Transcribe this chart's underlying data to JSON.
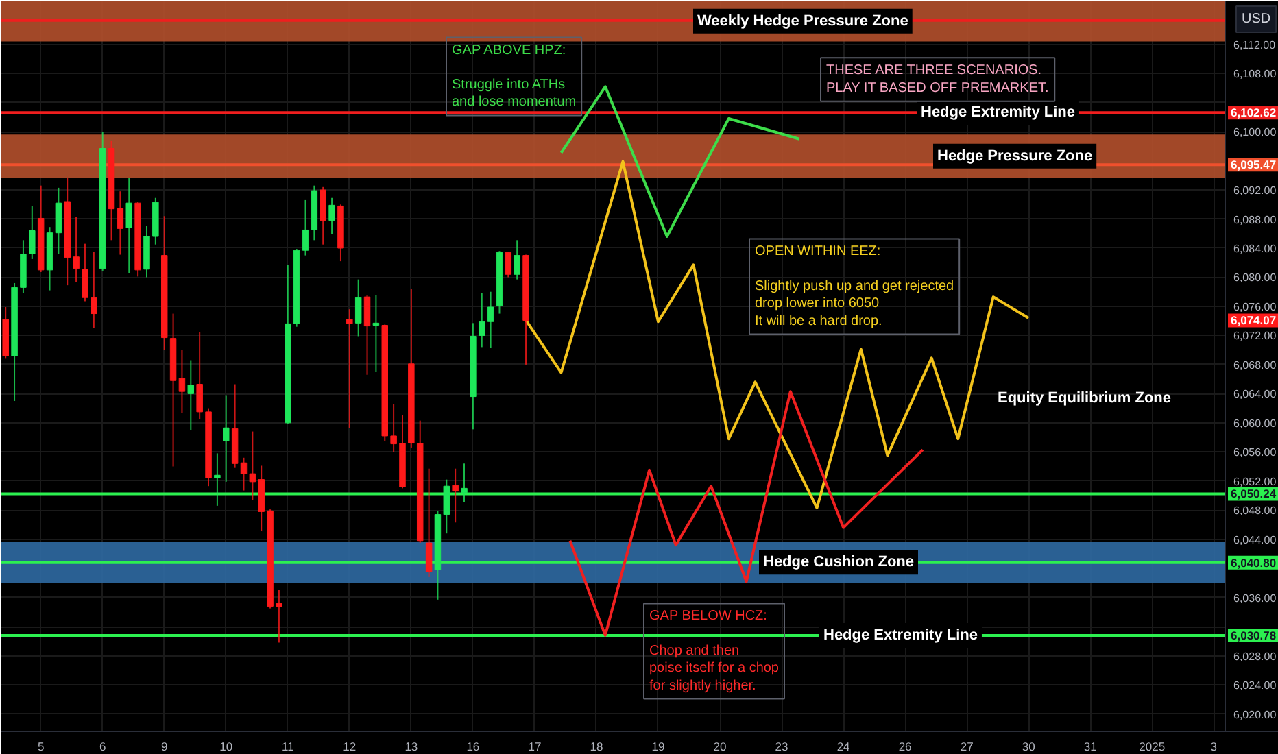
{
  "chart_data": {
    "type": "candlestick",
    "ylabel": "USD",
    "categories": [
      null,
      null,
      null,
      null,
      "5",
      null,
      null,
      null,
      null,
      null,
      null,
      "6",
      null,
      null,
      null,
      null,
      null,
      null,
      "9",
      null,
      null,
      null,
      null,
      null,
      null,
      "10",
      null,
      null,
      null,
      null,
      null,
      null,
      "11",
      null,
      null,
      null,
      null,
      null,
      null,
      "12",
      null,
      null,
      null,
      null,
      null,
      null,
      "13",
      null,
      null,
      null,
      null,
      null,
      null,
      "16",
      null,
      null,
      null,
      null,
      null,
      null,
      "17",
      null,
      null,
      null,
      null,
      null,
      null,
      "18",
      null,
      null,
      null,
      null,
      null,
      null,
      "19",
      null,
      null,
      null,
      null,
      null,
      null,
      "20",
      null,
      null,
      null,
      null,
      null,
      null,
      "23",
      null,
      null,
      null,
      null,
      null,
      null,
      "24",
      null,
      null,
      null,
      null,
      null,
      null,
      "26",
      null,
      null,
      null,
      null,
      null,
      null,
      "27",
      null,
      null,
      null,
      null,
      null,
      null,
      "30",
      null,
      null,
      null,
      null,
      null,
      null,
      "31",
      null,
      null,
      null,
      null,
      null,
      null,
      "2025",
      null,
      null,
      null,
      null,
      null,
      null,
      "3",
      null
    ],
    "ohlc": [
      [
        6074.2,
        6075.9,
        6068.8,
        6069.2
      ],
      [
        6069.2,
        6079.2,
        6063.0,
        6078.6
      ],
      [
        6078.6,
        6085.1,
        6077.8,
        6083.2
      ],
      [
        6083.2,
        6089.8,
        6082.5,
        6086.4
      ],
      [
        6088.1,
        6092.6,
        6080.7,
        6081.0
      ],
      [
        6081.0,
        6086.9,
        6078.2,
        6086.1
      ],
      [
        6086.1,
        6092.3,
        6083.2,
        6090.2
      ],
      [
        6090.4,
        6093.7,
        6078.9,
        6082.7
      ],
      [
        6082.8,
        6088.3,
        6079.3,
        6081.2
      ],
      [
        6081.1,
        6084.6,
        6076.7,
        6077.2
      ],
      [
        6077.2,
        6083.5,
        6073.0,
        6075.0
      ],
      [
        6081.2,
        6100.0,
        6080.9,
        6097.7
      ],
      [
        6097.7,
        6098.7,
        6085.1,
        6089.4
      ],
      [
        6089.5,
        6091.8,
        6083.1,
        6086.7
      ],
      [
        6086.8,
        6093.7,
        6080.6,
        6090.2
      ],
      [
        6090.2,
        6090.4,
        6080.1,
        6081.0
      ],
      [
        6081.1,
        6087.1,
        6080.0,
        6085.6
      ],
      [
        6085.6,
        6090.9,
        6084.5,
        6090.3
      ],
      [
        6083.0,
        6088.4,
        6070.0,
        6071.7
      ],
      [
        6071.6,
        6075.0,
        6054.0,
        6065.8
      ],
      [
        6066.1,
        6070.0,
        6061.3,
        6064.3
      ],
      [
        6064.0,
        6068.6,
        6059.0,
        6065.2
      ],
      [
        6065.3,
        6072.5,
        6060.5,
        6061.5
      ],
      [
        6061.5,
        6062.0,
        6051.3,
        6052.4
      ],
      [
        6052.4,
        6055.8,
        6048.6,
        6052.8
      ],
      [
        6057.5,
        6063.8,
        6051.9,
        6059.3
      ],
      [
        6059.2,
        6065.3,
        6053.8,
        6054.4
      ],
      [
        6054.5,
        6055.2,
        6050.7,
        6053.0
      ],
      [
        6053.0,
        6058.8,
        6049.4,
        6051.9
      ],
      [
        6052.2,
        6054.1,
        6045.1,
        6047.8
      ],
      [
        6047.9,
        6048.1,
        6034.5,
        6034.8
      ],
      [
        6035.2,
        6037.0,
        6029.8,
        6034.7
      ],
      [
        6060.0,
        6081.7,
        6059.8,
        6073.6
      ],
      [
        6073.6,
        6083.9,
        6073.2,
        6083.7
      ],
      [
        6083.7,
        6090.6,
        6083.0,
        6086.5
      ],
      [
        6086.5,
        6092.6,
        6085.1,
        6091.9
      ],
      [
        6092.0,
        6092.4,
        6084.5,
        6087.8
      ],
      [
        6087.8,
        6090.9,
        6085.9,
        6089.9
      ],
      [
        6089.8,
        6090.0,
        6082.2,
        6084.0
      ],
      [
        6074.2,
        6075.6,
        6059.3,
        6073.6
      ],
      [
        6073.7,
        6079.7,
        6071.9,
        6077.2
      ],
      [
        6077.3,
        6077.5,
        6066.6,
        6073.3
      ],
      [
        6073.4,
        6077.6,
        6067.0,
        6073.7
      ],
      [
        6073.4,
        6073.5,
        6057.5,
        6058.2
      ],
      [
        6058.2,
        6062.6,
        6056.0,
        6057.1
      ],
      [
        6057.2,
        6061.1,
        6051.0,
        6051.2
      ],
      [
        6068.1,
        6078.4,
        6056.6,
        6057.2
      ],
      [
        6057.2,
        6060.3,
        6043.5,
        6043.8
      ],
      [
        6043.5,
        6053.7,
        6038.8,
        6039.5
      ],
      [
        6039.8,
        6047.9,
        6035.7,
        6047.4
      ],
      [
        6047.4,
        6052.2,
        6044.8,
        6051.3
      ],
      [
        6051.4,
        6053.7,
        6046.3,
        6050.6
      ],
      [
        6050.4,
        6054.4,
        6049.1,
        6051.0
      ],
      [
        6063.6,
        6073.7,
        6059.1,
        6071.9
      ],
      [
        6072.0,
        6077.8,
        6070.4,
        6073.9
      ],
      [
        6073.9,
        6078.0,
        6070.3,
        6075.9
      ],
      [
        6076.1,
        6083.6,
        6075.0,
        6083.4
      ],
      [
        6083.4,
        6083.5,
        6080.0,
        6080.4
      ],
      [
        6080.4,
        6085.1,
        6079.7,
        6083.0
      ],
      [
        6083.0,
        6083.1,
        6068.0,
        6074.07
      ],
      null,
      null,
      null,
      null,
      null,
      null,
      null,
      null,
      null,
      null,
      null,
      null,
      null,
      null,
      null,
      null,
      null,
      null,
      null,
      null,
      null,
      null,
      null,
      null,
      null,
      null,
      null,
      null,
      null,
      null,
      null,
      null,
      null,
      null,
      null,
      null,
      null,
      null,
      null,
      null,
      null,
      null,
      null,
      null,
      null,
      null,
      null,
      null,
      null,
      null,
      null,
      null,
      null,
      null,
      null,
      null,
      null,
      null,
      null,
      null,
      null,
      null,
      null,
      null,
      null,
      null,
      null,
      null,
      null,
      null,
      null,
      null,
      null,
      null,
      null,
      null,
      null,
      null,
      null
    ],
    "colors": [
      "#ff1a1a",
      "#1ee65a",
      "#1ee65a",
      "#1ee65a",
      "#ff1a1a",
      "#1ee65a",
      "#1ee65a",
      "#ff1a1a",
      "#ff1a1a",
      "#ff1a1a",
      "#ff1a1a",
      "#1ee65a",
      "#ff1a1a",
      "#ff1a1a",
      "#1ee65a",
      "#ff1a1a",
      "#1ee65a",
      "#1ee65a",
      "#ff1a1a",
      "#ff1a1a",
      "#ff1a1a",
      "#1ee65a",
      "#ff1a1a",
      "#ff1a1a",
      "#1ee65a",
      "#1ee65a",
      "#ff1a1a",
      "#ff1a1a",
      "#ff1a1a",
      "#ff1a1a",
      "#ff1a1a",
      "#ff1a1a",
      "#1ee65a",
      "#1ee65a",
      "#1ee65a",
      "#1ee65a",
      "#ff1a1a",
      "#1ee65a",
      "#ff1a1a",
      "#ff1a1a",
      "#1ee65a",
      "#ff1a1a",
      "#1ee65a",
      "#ff1a1a",
      "#ff1a1a",
      "#ff1a1a",
      "#ff1a1a",
      "#ff1a1a",
      "#ff1a1a",
      "#1ee65a",
      "#1ee65a",
      "#ff1a1a",
      "#1ee65a",
      "#1ee65a",
      "#1ee65a",
      "#1ee65a",
      "#1ee65a",
      "#ff1a1a",
      "#1ee65a",
      "#ff1a1a",
      null,
      null,
      null,
      null,
      null,
      null,
      null,
      null,
      null,
      null,
      null,
      null,
      null,
      null,
      null,
      null,
      null,
      null,
      null,
      null,
      null,
      null,
      null,
      null,
      null,
      null,
      null,
      null,
      null,
      null,
      null,
      null,
      null,
      null,
      null,
      null,
      null,
      null,
      null,
      null,
      null,
      null,
      null,
      null,
      null,
      null,
      null,
      null,
      null,
      null,
      null,
      null,
      null,
      null,
      null,
      null,
      null,
      null,
      null,
      null,
      null,
      null,
      null,
      null,
      null,
      null,
      null,
      null,
      null,
      null,
      null,
      null,
      null,
      null,
      null,
      null,
      null,
      null,
      null
    ],
    "series": [
      {
        "type": "line",
        "color": "#3ddc4a",
        "values": [
          null,
          null,
          null,
          null,
          null,
          null,
          null,
          null,
          null,
          null,
          null,
          null,
          null,
          null,
          null,
          null,
          null,
          null,
          null,
          null,
          null,
          null,
          null,
          null,
          null,
          null,
          null,
          null,
          null,
          null,
          null,
          null,
          null,
          null,
          null,
          null,
          null,
          null,
          null,
          null,
          null,
          null,
          null,
          null,
          null,
          null,
          null,
          null,
          null,
          null,
          null,
          null,
          null,
          null,
          null,
          null,
          null,
          null,
          null,
          null,
          null,
          null,
          null,
          6097.1,
          null,
          null,
          null,
          null,
          6106.2,
          null,
          null,
          null,
          null,
          null,
          null,
          6085.6,
          null,
          null,
          null,
          null,
          null,
          null,
          6101.8,
          null,
          null,
          null,
          null,
          null,
          null,
          null,
          6099.0,
          null,
          null,
          null,
          null,
          null,
          null,
          null,
          null,
          null,
          null,
          null,
          null,
          null,
          null,
          null,
          null,
          null,
          null,
          null,
          null,
          null,
          null,
          null,
          null,
          null,
          null,
          null,
          null,
          null,
          null,
          null,
          null,
          null,
          null,
          null,
          null,
          null,
          null,
          null,
          null,
          null,
          null,
          null,
          null,
          null,
          null,
          null,
          null
        ]
      },
      {
        "type": "line",
        "color": "#f2c21b",
        "values": [
          null,
          null,
          null,
          null,
          null,
          null,
          null,
          null,
          null,
          null,
          null,
          null,
          null,
          null,
          null,
          null,
          null,
          null,
          null,
          null,
          null,
          null,
          null,
          null,
          null,
          null,
          null,
          null,
          null,
          null,
          null,
          null,
          null,
          null,
          null,
          null,
          null,
          null,
          null,
          null,
          null,
          null,
          null,
          null,
          null,
          null,
          null,
          null,
          null,
          null,
          null,
          null,
          null,
          null,
          null,
          null,
          null,
          null,
          null,
          6074.1,
          null,
          null,
          null,
          6066.9,
          null,
          null,
          null,
          null,
          null,
          null,
          6095.9,
          null,
          null,
          null,
          6073.9,
          null,
          null,
          null,
          6081.7,
          null,
          null,
          null,
          6057.8,
          null,
          null,
          6065.6,
          null,
          null,
          null,
          null,
          null,
          null,
          6048.3,
          null,
          null,
          null,
          null,
          6070.1,
          null,
          null,
          6055.5,
          null,
          null,
          null,
          null,
          6068.9,
          null,
          null,
          6057.8,
          null,
          null,
          null,
          6077.3,
          null,
          null,
          null,
          6074.4,
          null,
          null,
          null,
          null,
          null,
          null,
          null,
          null,
          null,
          null,
          null,
          null,
          null,
          null,
          null,
          null,
          null,
          null,
          null,
          null,
          null,
          null
        ]
      },
      {
        "type": "line",
        "color": "#f02020",
        "values": [
          null,
          null,
          null,
          null,
          null,
          null,
          null,
          null,
          null,
          null,
          null,
          null,
          null,
          null,
          null,
          null,
          null,
          null,
          null,
          null,
          null,
          null,
          null,
          null,
          null,
          null,
          null,
          null,
          null,
          null,
          null,
          null,
          null,
          null,
          null,
          null,
          null,
          null,
          null,
          null,
          null,
          null,
          null,
          null,
          null,
          null,
          null,
          null,
          null,
          null,
          null,
          null,
          null,
          null,
          null,
          null,
          null,
          null,
          null,
          null,
          null,
          null,
          null,
          null,
          6043.8,
          null,
          null,
          null,
          6030.8,
          null,
          null,
          null,
          null,
          6053.5,
          null,
          null,
          6043.2,
          null,
          null,
          null,
          6051.3,
          null,
          null,
          null,
          6038.2,
          null,
          null,
          null,
          null,
          6064.3,
          null,
          null,
          null,
          null,
          null,
          6045.6,
          null,
          null,
          null,
          null,
          null,
          null,
          null,
          null,
          6056.3,
          null,
          null,
          null,
          null,
          null,
          null,
          null,
          null,
          null,
          null,
          null,
          null,
          null,
          null,
          null,
          null,
          null,
          null,
          null,
          null,
          null,
          null,
          null,
          null,
          null,
          null,
          null,
          null,
          null,
          null,
          null,
          null,
          null,
          null
        ]
      }
    ],
    "ylim": [
      6017.6,
      6118.0
    ],
    "yticks": [
      {
        "value": 6020,
        "label": "6,020.00"
      },
      {
        "value": 6024,
        "label": "6,024.00"
      },
      {
        "value": 6028,
        "label": "6,028.00"
      },
      {
        "value": 6032,
        "label": null
      },
      {
        "value": 6036,
        "label": "6,036.00"
      },
      {
        "value": 6044,
        "label": "6,044.00"
      },
      {
        "value": 6048,
        "label": "6,048.00"
      },
      {
        "value": 6052,
        "label": "6,052.00"
      },
      {
        "value": 6056,
        "label": "6,056.00"
      },
      {
        "value": 6060,
        "label": "6,060.00"
      },
      {
        "value": 6064,
        "label": "6,064.00"
      },
      {
        "value": 6068,
        "label": "6,068.00"
      },
      {
        "value": 6072,
        "label": "6,072.00"
      },
      {
        "value": 6076,
        "label": "6,076.00"
      },
      {
        "value": 6080,
        "label": "6,080.00"
      },
      {
        "value": 6084,
        "label": "6,084.00"
      },
      {
        "value": 6088,
        "label": "6,088.00"
      },
      {
        "value": 6092,
        "label": "6,092.00"
      },
      {
        "value": 6100,
        "label": "6,100.00"
      },
      {
        "value": 6104,
        "label": null
      },
      {
        "value": 6108,
        "label": "6,108.00"
      },
      {
        "value": 6112,
        "label": "6,112.00"
      }
    ],
    "grid": true,
    "bands": [
      {
        "axis": "y",
        "from": 6112.4,
        "to": 6118.0,
        "label": "Weekly Hedge Pressure Zone",
        "color": "#b4502c"
      },
      {
        "axis": "y",
        "from": 6093.7,
        "to": 6099.6,
        "label": "Hedge Pressure Zone",
        "color": "#b4502c"
      },
      {
        "axis": "y",
        "from": 6038.0,
        "to": 6043.7,
        "label": "Hedge Cushion Zone",
        "color": "#2f6aa3"
      }
    ],
    "ref_lines": [
      {
        "axis": "y",
        "value": 6115.3,
        "color": "#f01e1e"
      },
      {
        "axis": "y",
        "value": 6102.62,
        "label": "Hedge Extremity Line",
        "color": "#f01e1e"
      },
      {
        "axis": "y",
        "value": 6095.47,
        "color": "#f0502d"
      },
      {
        "axis": "y",
        "value": 6050.24,
        "color": "#2cf050"
      },
      {
        "axis": "y",
        "value": 6040.8,
        "color": "#2cf050"
      },
      {
        "axis": "y",
        "value": 6030.78,
        "label": "Hedge Extremity Line",
        "color": "#2cf050"
      }
    ],
    "annotations": [
      "GAP ABOVE HPZ:\n\nStruggle into ATHs\nand lose momentum",
      "THESE ARE THREE SCENARIOS.\nPLAY IT BASED OFF PREMARKET.",
      "OPEN WITHIN EEZ:\n\nSlightly push up and get rejected\ndrop lower into 6050\nIt will be a hard drop.",
      "GAP BELOW HCZ:\n\nChop and then\npoise itself for a chop\nfor slightly higher.",
      "Equity Equilibrium Zone",
      "6,074.07",
      "6,102.62",
      "6,095.47",
      "6,050.24",
      "6,040.80",
      "6,030.78"
    ]
  }
}
